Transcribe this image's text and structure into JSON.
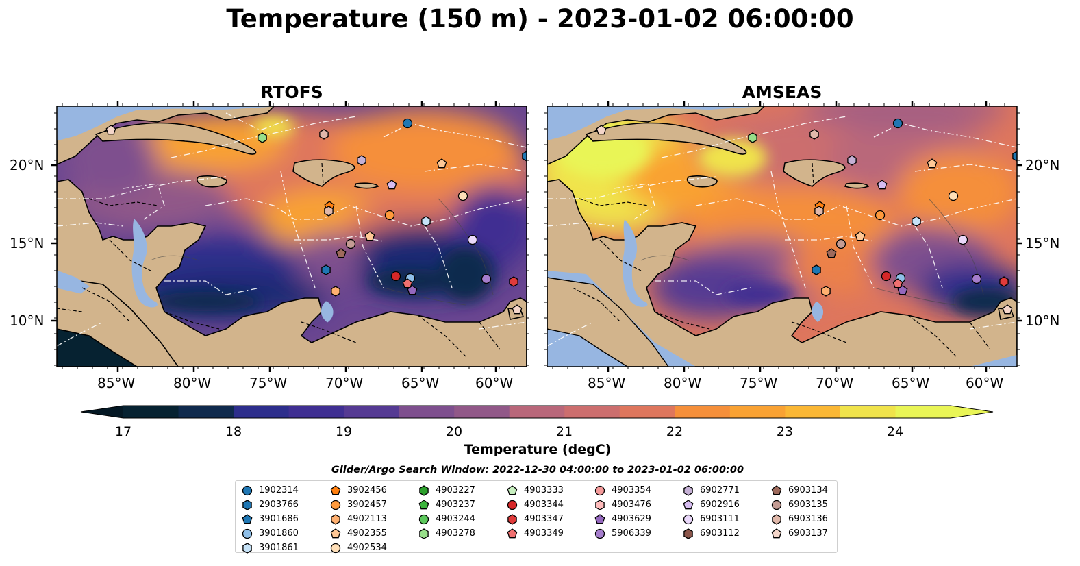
{
  "title": "Temperature (150 m) - 2023-01-02 06:00:00",
  "panels": [
    {
      "title": "RTOFS"
    },
    {
      "title": "AMSEAS"
    }
  ],
  "axes": {
    "lat_ticks": [
      "20°N",
      "15°N",
      "10°N"
    ],
    "lon_ticks": [
      "85°W",
      "80°W",
      "75°W",
      "70°W",
      "65°W",
      "60°W"
    ]
  },
  "colorbar": {
    "label": "Temperature (degC)",
    "ticks": [
      "17",
      "18",
      "19",
      "20",
      "21",
      "22",
      "23",
      "24"
    ],
    "range": [
      16.5,
      24.75
    ],
    "extend": "both"
  },
  "legend": {
    "title": "Glider/Argo Search Window: 2022-12-30 04:00:00 to 2023-01-02 06:00:00",
    "items": [
      {
        "id": "1902314",
        "color": "#1f77b4",
        "marker": "circle"
      },
      {
        "id": "2903766",
        "color": "#1f77b4",
        "marker": "hexagon"
      },
      {
        "id": "3901686",
        "color": "#1f77b4",
        "marker": "pentagon"
      },
      {
        "id": "3901860",
        "color": "#8fbfe8",
        "marker": "circle"
      },
      {
        "id": "3901861",
        "color": "#c6e2f7",
        "marker": "hexagon"
      },
      {
        "id": "3902456",
        "color": "#ff7f0e",
        "marker": "pentagon"
      },
      {
        "id": "3902457",
        "color": "#ff9a3c",
        "marker": "circle"
      },
      {
        "id": "4902113",
        "color": "#ffb070",
        "marker": "hexagon"
      },
      {
        "id": "4902355",
        "color": "#ffc896",
        "marker": "pentagon"
      },
      {
        "id": "4902534",
        "color": "#ffdfb8",
        "marker": "circle"
      },
      {
        "id": "4903227",
        "color": "#2ca02c",
        "marker": "hexagon"
      },
      {
        "id": "4903237",
        "color": "#3cb43c",
        "marker": "pentagon"
      },
      {
        "id": "4903244",
        "color": "#5cc85c",
        "marker": "circle"
      },
      {
        "id": "4903278",
        "color": "#98df8a",
        "marker": "hexagon"
      },
      {
        "id": "4903333",
        "color": "#c8f0c0",
        "marker": "pentagon"
      },
      {
        "id": "4903344",
        "color": "#d62728",
        "marker": "circle"
      },
      {
        "id": "4903347",
        "color": "#e03b3b",
        "marker": "hexagon"
      },
      {
        "id": "4903349",
        "color": "#f07070",
        "marker": "pentagon"
      },
      {
        "id": "4903354",
        "color": "#f49a9a",
        "marker": "circle"
      },
      {
        "id": "4903476",
        "color": "#ffbcbc",
        "marker": "hexagon"
      },
      {
        "id": "4903629",
        "color": "#9467bd",
        "marker": "pentagon"
      },
      {
        "id": "5906339",
        "color": "#a57dcc",
        "marker": "circle"
      },
      {
        "id": "6902771",
        "color": "#c5b0d5",
        "marker": "hexagon"
      },
      {
        "id": "6902916",
        "color": "#d6bcf0",
        "marker": "pentagon"
      },
      {
        "id": "6903111",
        "color": "#ead8fa",
        "marker": "circle"
      },
      {
        "id": "6903112",
        "color": "#8c564b",
        "marker": "hexagon"
      },
      {
        "id": "6903134",
        "color": "#9e6a5c",
        "marker": "pentagon"
      },
      {
        "id": "6903135",
        "color": "#c49c94",
        "marker": "circle"
      },
      {
        "id": "6903136",
        "color": "#e0b8aa",
        "marker": "hexagon"
      },
      {
        "id": "6903137",
        "color": "#f4d6ca",
        "marker": "pentagon"
      }
    ]
  },
  "colors": {
    "land": "#d2b48c",
    "lakes": "#97b6e1",
    "eez_lines": "#ffffff",
    "borders": "#000000",
    "colormap": [
      "#062231",
      "#0f2a4d",
      "#1d2a73",
      "#2d2e8c",
      "#3f2f92",
      "#553a93",
      "#6a4691",
      "#7e4f8e",
      "#915888",
      "#a55f82",
      "#b9677a",
      "#cc6e6e",
      "#de765d",
      "#ec814a",
      "#f58f3a",
      "#f9a233",
      "#fab735",
      "#f8cd3d",
      "#f0e34b",
      "#e9f556"
    ],
    "neg_extend": "#041824",
    "pos_extend": "#e9f556"
  }
}
